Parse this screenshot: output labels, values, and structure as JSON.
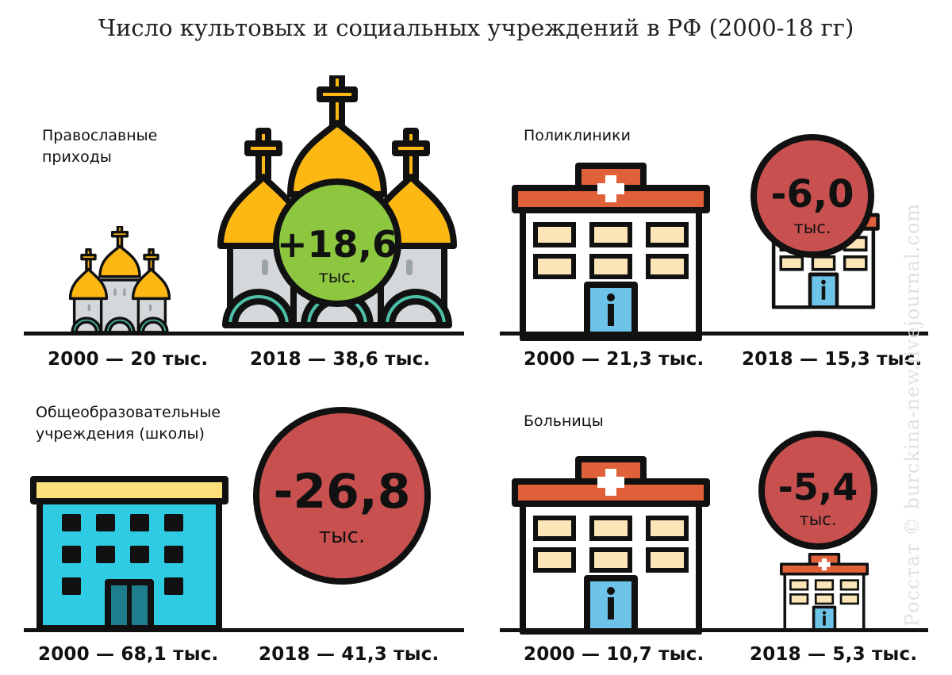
{
  "title": "Число культовых и социальных учреждений в РФ (2000-18 гг)",
  "watermark": "Росстат © burckina-new.livejournal.com",
  "colors": {
    "gold": "#FDB813",
    "teal": "#4DBFA8",
    "green": "#8DC63F",
    "red": "#C8514F",
    "cyan": "#2ECBE3",
    "roof_orange": "#E0603A",
    "window_cream": "#FCE6B8"
  },
  "panels": {
    "churches": {
      "label_line1": "Православные",
      "label_line2": "приходы",
      "cap_2000": "2000 — 20 тыс.",
      "cap_2018": "2018 — 38,6 тыс.",
      "change": "+18,6",
      "unit": "тыс.",
      "icon": "church-icon"
    },
    "clinics": {
      "label": "Поликлиники",
      "cap_2000": "2000 — 21,3 тыс.",
      "cap_2018": "2018 — 15,3 тыс.",
      "change": "-6,0",
      "unit": "тыс.",
      "icon": "clinic-icon"
    },
    "schools": {
      "label_line1": "Общеобразовательные",
      "label_line2": "учреждения (школы)",
      "cap_2000": "2000 — 68,1 тыс.",
      "cap_2018": "2018 — 41,3 тыс.",
      "change": "-26,8",
      "unit": "тыс.",
      "icon": "school-icon"
    },
    "hospitals": {
      "label": "Больницы",
      "cap_2000": "2000 — 10,7 тыс.",
      "cap_2018": "2018 — 5,3 тыс.",
      "change": "-5,4",
      "unit": "тыс.",
      "icon": "hospital-icon"
    }
  }
}
